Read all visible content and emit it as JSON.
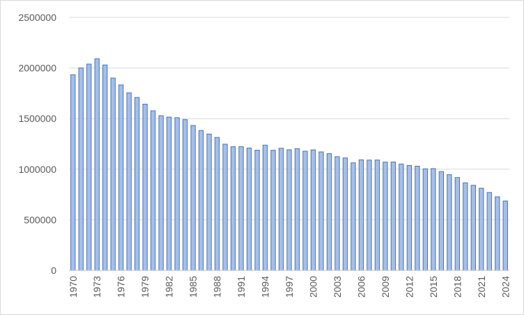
{
  "chart_data": {
    "type": "bar",
    "title": "",
    "xlabel": "",
    "ylabel": "",
    "ylim": [
      0,
      2500000
    ],
    "y_ticks": [
      0,
      500000,
      1000000,
      1500000,
      2000000,
      2500000
    ],
    "y_tick_labels": [
      "0",
      "500000",
      "1000000",
      "1500000",
      "2000000",
      "2500000"
    ],
    "x_tick_labels": [
      "1970",
      "1973",
      "1976",
      "1979",
      "1982",
      "1985",
      "1988",
      "1991",
      "1994",
      "1997",
      "2000",
      "2003",
      "2006",
      "2009",
      "2012",
      "2015",
      "2018",
      "2021",
      "2024"
    ],
    "grid": true,
    "legend": "none",
    "bar_fill": "#a6bfe9",
    "bar_stroke": "#4472c4",
    "categories": [
      "1970",
      "1971",
      "1972",
      "1973",
      "1974",
      "1975",
      "1976",
      "1977",
      "1978",
      "1979",
      "1980",
      "1981",
      "1982",
      "1983",
      "1984",
      "1985",
      "1986",
      "1987",
      "1988",
      "1989",
      "1990",
      "1991",
      "1992",
      "1993",
      "1994",
      "1995",
      "1996",
      "1997",
      "1998",
      "1999",
      "2000",
      "2001",
      "2002",
      "2003",
      "2004",
      "2005",
      "2006",
      "2007",
      "2008",
      "2009",
      "2010",
      "2011",
      "2012",
      "2013",
      "2014",
      "2015",
      "2016",
      "2017",
      "2018",
      "2019",
      "2020",
      "2021",
      "2022",
      "2023",
      "2024"
    ],
    "values": [
      1934000,
      2001000,
      2039000,
      2092000,
      2030000,
      1901000,
      1833000,
      1755000,
      1709000,
      1643000,
      1577000,
      1529000,
      1515000,
      1509000,
      1490000,
      1432000,
      1383000,
      1347000,
      1314000,
      1247000,
      1222000,
      1223000,
      1209000,
      1188000,
      1238000,
      1187000,
      1207000,
      1192000,
      1203000,
      1178000,
      1191000,
      1171000,
      1154000,
      1124000,
      1111000,
      1063000,
      1093000,
      1090000,
      1091000,
      1070000,
      1071000,
      1051000,
      1037000,
      1030000,
      1004000,
      1006000,
      977000,
      946000,
      918000,
      865000,
      841000,
      812000,
      770000,
      727000,
      686000
    ]
  }
}
